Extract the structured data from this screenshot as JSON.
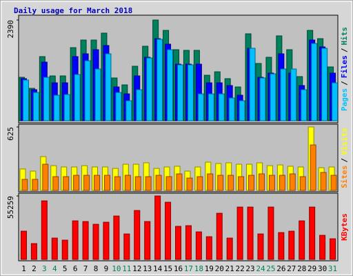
{
  "chart_data": [
    {
      "type": "bar",
      "title": "Daily usage for March 2018",
      "legend_separator": "/",
      "ylim": [
        0,
        2390
      ],
      "yticks": [
        2390
      ],
      "legend_order": [
        2,
        1,
        0
      ],
      "series": [
        {
          "name": "Hits",
          "color": "#00805c",
          "values": [
            1031,
            769,
            1522,
            1064,
            1064,
            1735,
            1915,
            1915,
            2079,
            1015,
            851,
            1293,
            1768,
            2390,
            2144,
            1686,
            1670,
            1670,
            1080,
            1162,
            999,
            802,
            2063,
            1359,
            1506,
            2014,
            1686,
            1048,
            2144,
            1948,
            1277
          ]
        },
        {
          "name": "Files",
          "color": "#0000ff",
          "values": [
            999,
            737,
            1391,
            900,
            900,
            1522,
            1588,
            1686,
            1784,
            802,
            638,
            1064,
            1506,
            1948,
            1817,
            1342,
            1342,
            1342,
            900,
            900,
            835,
            606,
            1719,
            1031,
            1130,
            1588,
            1130,
            835,
            1915,
            1752,
            1130
          ]
        },
        {
          "name": "Pages",
          "color": "#00c0ff",
          "values": [
            966,
            671,
            1031,
            606,
            622,
            1097,
            1424,
            1228,
            1588,
            671,
            475,
            737,
            1490,
            1932,
            1686,
            1326,
            1326,
            638,
            638,
            638,
            540,
            475,
            1719,
            1015,
            1113,
            1228,
            1228,
            737,
            1833,
            1719,
            900
          ]
        }
      ]
    },
    {
      "type": "bar",
      "legend_separator": "/",
      "ylim": [
        0,
        625
      ],
      "yticks": [
        625
      ],
      "legend_order": [
        1,
        0
      ],
      "series": [
        {
          "name": "Visits",
          "color": "#ffff00",
          "values": [
            211,
            190,
            333,
            244,
            231,
            231,
            244,
            231,
            231,
            217,
            258,
            258,
            272,
            217,
            231,
            238,
            190,
            231,
            278,
            265,
            272,
            258,
            258,
            272,
            244,
            251,
            238,
            231,
            625,
            224,
            231
          ]
        },
        {
          "name": "Sites",
          "color": "#ff8000",
          "values": [
            109,
            109,
            258,
            136,
            136,
            149,
            149,
            149,
            149,
            136,
            149,
            136,
            136,
            149,
            136,
            163,
            122,
            136,
            163,
            149,
            149,
            136,
            149,
            163,
            149,
            149,
            163,
            136,
            448,
            177,
            149
          ]
        }
      ]
    },
    {
      "type": "bar",
      "ylim": [
        0,
        55259
      ],
      "yticks": [
        55259
      ],
      "legend_order": [
        0
      ],
      "series": [
        {
          "name": "KBytes",
          "color": "#ff0000",
          "values": [
            24600,
            13800,
            51000,
            18600,
            16800,
            33600,
            33000,
            30600,
            32400,
            37800,
            22200,
            42600,
            33000,
            55259,
            49800,
            28800,
            29400,
            24000,
            19800,
            40200,
            18600,
            45600,
            45600,
            22200,
            45600,
            23400,
            24600,
            33600,
            45600,
            21000,
            18000
          ]
        }
      ],
      "categories": [
        "1",
        "2",
        "3",
        "4",
        "5",
        "6",
        "7",
        "8",
        "9",
        "10",
        "11",
        "12",
        "13",
        "14",
        "15",
        "16",
        "17",
        "18",
        "19",
        "20",
        "21",
        "22",
        "23",
        "24",
        "25",
        "26",
        "27",
        "28",
        "29",
        "30",
        "31"
      ],
      "category_color": "#000000",
      "highlight_color": "#00805c",
      "highlighted_indices": [
        2,
        3,
        9,
        10,
        16,
        17,
        23,
        24,
        30
      ]
    }
  ]
}
